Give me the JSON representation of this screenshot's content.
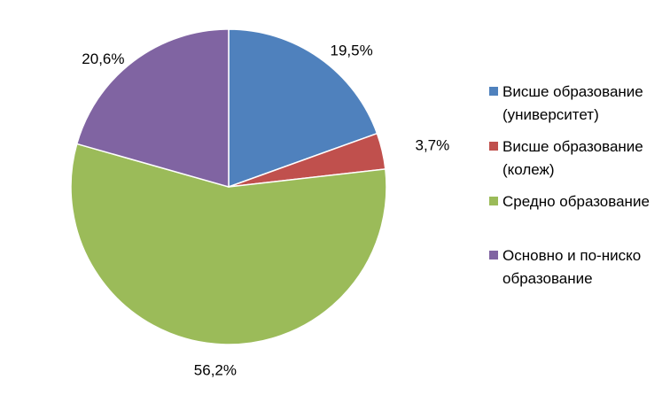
{
  "chart_data": {
    "type": "pie",
    "title": "",
    "categories": [
      "Висше образование (университет)",
      "Висше образование (колеж)",
      "Средно образование",
      "Основно и по-ниско образование"
    ],
    "values": [
      19.5,
      3.7,
      56.2,
      20.6
    ],
    "data_labels": [
      "19,5%",
      "3,7%",
      "56,2%",
      "20,6%"
    ],
    "legend_lines": [
      [
        "Висше образование",
        "(университет)"
      ],
      [
        "Висше образование",
        "(колеж)"
      ],
      [
        "Средно образование"
      ],
      [
        "Основно и по-ниско",
        "образование"
      ]
    ],
    "colors": [
      "#4F81BD",
      "#C0504D",
      "#9BBB59",
      "#8064A2"
    ],
    "legend_position": "right",
    "start_angle": "12 o'clock, clockwise"
  }
}
